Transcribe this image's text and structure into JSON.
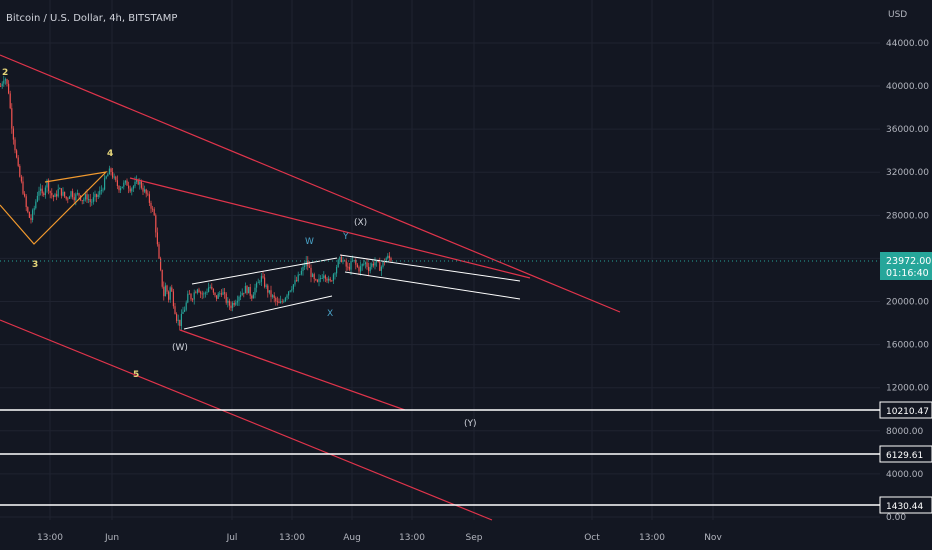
{
  "header": {
    "symbol": "Bitcoin / U.S. Dollar, 4h, BITSTAMP"
  },
  "colors": {
    "background": "#131722",
    "grid": "#1f2330",
    "up": "#26a69a",
    "down": "#ef5350",
    "channel": "#e0344b",
    "wave_labels": "#e6d67a",
    "wxy_labels": "#4aa3c8",
    "orange": "#f29a2e",
    "white": "#ffffff",
    "price_tag": "#26a69a"
  },
  "chart_data": {
    "type": "candlestick",
    "title": "Bitcoin / U.S. Dollar, 4h, BITSTAMP",
    "y_unit": "USD",
    "ylim": [
      0,
      46500
    ],
    "y_ticks": [
      "44000.00",
      "40000.00",
      "36000.00",
      "32000.00",
      "28000.00",
      "24000.00",
      "20000.00",
      "16000.00",
      "12000.00",
      "8000.00",
      "4000.00",
      "0.00"
    ],
    "x_ticks": [
      "13:00",
      "Jun",
      "Jul",
      "13:00",
      "Aug",
      "13:00",
      "Sep",
      "Oct",
      "13:00",
      "Nov"
    ],
    "grid": true,
    "current_price": {
      "value": "23972.00",
      "countdown": "01:16:40"
    },
    "price_path": [
      [
        0,
        40000
      ],
      [
        4,
        41000
      ],
      [
        8,
        39500
      ],
      [
        11,
        36500
      ],
      [
        14,
        34500
      ],
      [
        18,
        32000
      ],
      [
        22,
        30500
      ],
      [
        26,
        28500
      ],
      [
        30,
        27500
      ],
      [
        34,
        28800
      ],
      [
        38,
        30500
      ],
      [
        42,
        29800
      ],
      [
        46,
        31200
      ],
      [
        50,
        30000
      ],
      [
        54,
        29600
      ],
      [
        58,
        30400
      ],
      [
        62,
        30000
      ],
      [
        66,
        29500
      ],
      [
        70,
        30200
      ],
      [
        74,
        29700
      ],
      [
        78,
        30000
      ],
      [
        82,
        29400
      ],
      [
        86,
        29800
      ],
      [
        90,
        29200
      ],
      [
        94,
        29600
      ],
      [
        98,
        29900
      ],
      [
        102,
        30600
      ],
      [
        106,
        31600
      ],
      [
        110,
        32200
      ],
      [
        114,
        31200
      ],
      [
        118,
        30600
      ],
      [
        122,
        30800
      ],
      [
        126,
        31000
      ],
      [
        130,
        30500
      ],
      [
        134,
        30800
      ],
      [
        138,
        31200
      ],
      [
        142,
        30500
      ],
      [
        146,
        29900
      ],
      [
        150,
        29000
      ],
      [
        154,
        27800
      ],
      [
        158,
        24000
      ],
      [
        161,
        22000
      ],
      [
        163,
        20500
      ],
      [
        165,
        21500
      ],
      [
        168,
        20300
      ],
      [
        170,
        21500
      ],
      [
        173,
        19800
      ],
      [
        176,
        18500
      ],
      [
        179,
        17900
      ],
      [
        182,
        18900
      ],
      [
        185,
        19600
      ],
      [
        188,
        20700
      ],
      [
        191,
        20300
      ],
      [
        194,
        20900
      ],
      [
        197,
        21400
      ],
      [
        200,
        20800
      ],
      [
        203,
        20600
      ],
      [
        206,
        21000
      ],
      [
        209,
        21500
      ],
      [
        212,
        20800
      ],
      [
        215,
        20300
      ],
      [
        218,
        20600
      ],
      [
        221,
        21000
      ],
      [
        224,
        20400
      ],
      [
        227,
        19800
      ],
      [
        230,
        19600
      ],
      [
        233,
        19900
      ],
      [
        236,
        20300
      ],
      [
        239,
        20700
      ],
      [
        242,
        20900
      ],
      [
        245,
        21200
      ],
      [
        248,
        21000
      ],
      [
        251,
        20500
      ],
      [
        254,
        21200
      ],
      [
        257,
        21500
      ],
      [
        260,
        22300
      ],
      [
        263,
        21800
      ],
      [
        266,
        21200
      ],
      [
        269,
        20700
      ],
      [
        272,
        20400
      ],
      [
        275,
        20000
      ],
      [
        278,
        19700
      ],
      [
        281,
        19900
      ],
      [
        284,
        20400
      ],
      [
        287,
        20900
      ],
      [
        290,
        21300
      ],
      [
        293,
        21600
      ],
      [
        296,
        21900
      ],
      [
        299,
        22500
      ],
      [
        302,
        22900
      ],
      [
        305,
        23700
      ],
      [
        308,
        23200
      ],
      [
        311,
        22400
      ],
      [
        314,
        21800
      ],
      [
        317,
        21600
      ],
      [
        320,
        22200
      ],
      [
        323,
        22700
      ],
      [
        326,
        22300
      ],
      [
        329,
        21600
      ],
      [
        332,
        22400
      ],
      [
        335,
        23100
      ],
      [
        338,
        23700
      ],
      [
        341,
        24000
      ],
      [
        344,
        23500
      ],
      [
        347,
        23000
      ],
      [
        350,
        23400
      ],
      [
        353,
        23800
      ],
      [
        356,
        23200
      ],
      [
        359,
        23000
      ],
      [
        362,
        23400
      ],
      [
        365,
        23600
      ],
      [
        368,
        23100
      ],
      [
        371,
        23400
      ],
      [
        374,
        23700
      ],
      [
        377,
        23400
      ],
      [
        380,
        23100
      ],
      [
        383,
        23600
      ],
      [
        386,
        24100
      ],
      [
        389,
        24000
      ],
      [
        391,
        23972
      ]
    ],
    "horizontal_levels": [
      10210.47,
      6129.61,
      1430.44
    ],
    "wave_labels": [
      "2",
      "3",
      "4",
      "5",
      "(W)",
      "W",
      "X",
      "Y",
      "(X)",
      "(Y)"
    ]
  },
  "labels": {
    "axis_unit": "USD",
    "w_paren": "(W)",
    "x_paren": "(X)",
    "y_paren": "(Y)",
    "w": "W",
    "x": "X",
    "y": "Y",
    "n2": "2",
    "n3": "3",
    "n4": "4",
    "n5": "5",
    "lvl1": "10210.47",
    "lvl2": "6129.61",
    "lvl3": "1430.44"
  }
}
